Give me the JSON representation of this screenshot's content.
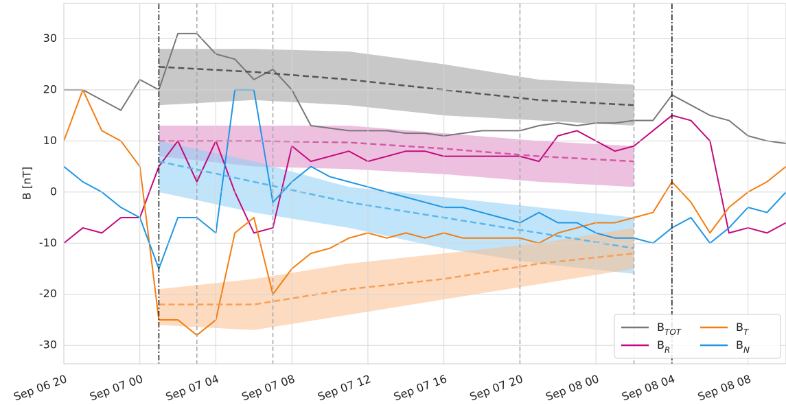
{
  "chart_data": {
    "type": "line",
    "ylabel": "B [nT]",
    "x": [
      "Sep 06 20",
      "Sep 06 21",
      "Sep 06 22",
      "Sep 06 23",
      "Sep 07 00",
      "Sep 07 01",
      "Sep 07 02",
      "Sep 07 03",
      "Sep 07 04",
      "Sep 07 05",
      "Sep 07 06",
      "Sep 07 07",
      "Sep 07 08",
      "Sep 07 09",
      "Sep 07 10",
      "Sep 07 11",
      "Sep 07 12",
      "Sep 07 13",
      "Sep 07 14",
      "Sep 07 15",
      "Sep 07 16",
      "Sep 07 17",
      "Sep 07 18",
      "Sep 07 19",
      "Sep 07 20",
      "Sep 07 21",
      "Sep 07 22",
      "Sep 07 23",
      "Sep 08 00",
      "Sep 08 01",
      "Sep 08 02",
      "Sep 08 03",
      "Sep 08 04",
      "Sep 08 05",
      "Sep 08 06",
      "Sep 08 07",
      "Sep 08 08",
      "Sep 08 09",
      "Sep 08 10"
    ],
    "series": [
      {
        "name": "BTOT",
        "color": "#777777",
        "values": [
          20,
          20,
          18,
          16,
          22,
          20,
          31,
          31,
          27,
          26,
          22,
          24,
          20,
          13,
          12.5,
          12,
          12,
          12,
          11.5,
          11.5,
          11,
          11.5,
          12,
          12,
          12,
          13,
          13.5,
          13,
          13.5,
          13.5,
          14,
          14,
          19,
          17,
          15,
          14,
          11,
          10,
          9.5
        ]
      },
      {
        "name": "BR",
        "color": "#c2097e",
        "values": [
          -10,
          -7,
          -8,
          -5,
          -5,
          5,
          10,
          2,
          10,
          0,
          -8,
          -7,
          9,
          6,
          7,
          8,
          6,
          7,
          8,
          8,
          7,
          7,
          7,
          7,
          7,
          6,
          11,
          12,
          10,
          8,
          9,
          12,
          15,
          14,
          10,
          -8,
          -7,
          -8,
          -6
        ]
      },
      {
        "name": "BT",
        "color": "#f57d0e",
        "values": [
          10,
          20,
          12,
          10,
          5,
          -25,
          -25,
          -28,
          -25,
          -8,
          -5,
          -20,
          -15,
          -12,
          -11,
          -9,
          -8,
          -9,
          -8,
          -9,
          -8,
          -9,
          -9,
          -9,
          -9,
          -10,
          -8,
          -7,
          -6,
          -6,
          -5,
          -4,
          2,
          -2,
          -8,
          -3,
          0,
          2,
          5
        ]
      },
      {
        "name": "BN",
        "color": "#1e96e6",
        "values": [
          5,
          2,
          0,
          -3,
          -5,
          -15,
          -5,
          -5,
          -8,
          20,
          20,
          -2,
          2,
          5,
          3,
          2,
          1,
          0,
          -1,
          -2,
          -3,
          -3,
          -4,
          -5,
          -6,
          -4,
          -6,
          -6,
          -8,
          -9,
          -9,
          -10,
          -7,
          -5,
          -10,
          -7,
          -3,
          -4,
          0
        ]
      }
    ],
    "model_x": [
      "Sep 07 01",
      "Sep 07 06",
      "Sep 07 11",
      "Sep 07 16",
      "Sep 07 21",
      "Sep 08 02"
    ],
    "model": [
      {
        "color": "#555555",
        "band": "#9a9a9a",
        "values": [
          24.5,
          23.5,
          22,
          20,
          18,
          17
        ],
        "upper": [
          28,
          28,
          27.5,
          25,
          22,
          21
        ],
        "lower": [
          17,
          18,
          17,
          15,
          14,
          13
        ]
      },
      {
        "color": "#d45aa5",
        "band": "#de8cc6",
        "values": [
          10,
          10,
          9.7,
          8.5,
          7,
          6
        ],
        "upper": [
          13,
          13,
          13,
          11.5,
          10,
          9
        ],
        "lower": [
          7,
          5,
          4.5,
          3.5,
          2,
          1
        ]
      },
      {
        "color": "#5ab8ec",
        "band": "#8ccdf5",
        "values": [
          6,
          2,
          -2,
          -5,
          -8,
          -11
        ],
        "upper": [
          10,
          6,
          1,
          -1,
          -3,
          -5
        ],
        "lower": [
          0,
          -4,
          -7,
          -11,
          -14,
          -16
        ]
      },
      {
        "color": "#f5a05a",
        "band": "#fbbe8c",
        "values": [
          -22,
          -22,
          -19,
          -17,
          -14,
          -12
        ],
        "upper": [
          -19,
          -17,
          -14,
          -12,
          -10,
          -7
        ],
        "lower": [
          -26,
          -27,
          -24,
          -21,
          -18,
          -15
        ]
      }
    ],
    "vlines": [
      {
        "x": "Sep 07 01",
        "style": "dashdot"
      },
      {
        "x": "Sep 07 03",
        "style": "dashed"
      },
      {
        "x": "Sep 07 07",
        "style": "dashed"
      },
      {
        "x": "Sep 07 20",
        "style": "dashed"
      },
      {
        "x": "Sep 08 02",
        "style": "dashed"
      },
      {
        "x": "Sep 08 04",
        "style": "dashdot"
      }
    ],
    "xlim": [
      "Sep 06 20",
      "Sep 08 10"
    ],
    "xticks": [
      "Sep 06 20",
      "Sep 07 00",
      "Sep 07 04",
      "Sep 07 08",
      "Sep 07 12",
      "Sep 07 16",
      "Sep 07 20",
      "Sep 08 00",
      "Sep 08 04",
      "Sep 08 08"
    ],
    "ylim": [
      -33.6,
      36.9
    ],
    "yticks": [
      -30,
      -20,
      -10,
      0,
      10,
      20,
      30
    ],
    "grid": true,
    "legend": "lower right"
  }
}
